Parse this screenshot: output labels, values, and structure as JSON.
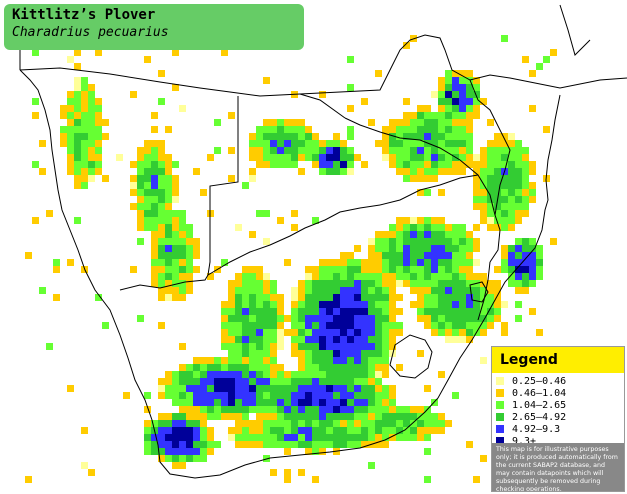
{
  "title": {
    "common_name": "Kittlitz’s Plover",
    "scientific_name": "Charadrius pecuarius"
  },
  "legend": {
    "title": "Legend",
    "items": [
      {
        "label": "0.25–0.46",
        "color": "#ffff99"
      },
      {
        "label": "0.46–1.04",
        "color": "#ffcc00"
      },
      {
        "label": "1.04–2.65",
        "color": "#66ff33"
      },
      {
        "label": "2.65–4.92",
        "color": "#33cc33"
      },
      {
        "label": "4.92–9.3",
        "color": "#3333ff"
      },
      {
        "label": "9.3+",
        "color": "#000099"
      }
    ],
    "disclaimer": "This map is for illustrative purposes only; it is produced automatically from the current SABAP2 database, and may contain datapoints which will subsequently be removed during checking operations."
  },
  "colors": {
    "background": "#ffffff",
    "border_lines": "#000000",
    "title_box": "#66cc66"
  }
}
